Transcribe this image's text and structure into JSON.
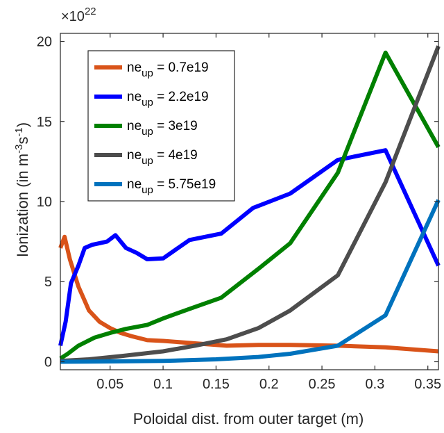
{
  "chart_data": {
    "type": "line",
    "title": "",
    "xlabel": "Poloidal dist. from outer target (m)",
    "ylabel": {
      "text": "Ionization (in m",
      "sup1": "-3",
      "mid": "s",
      "sup2": "-1",
      "end": ")"
    },
    "y_multiplier": {
      "base": "×10",
      "exponent": "22"
    },
    "xlim": [
      0.003,
      0.36
    ],
    "ylim": [
      -0.5,
      20.5
    ],
    "x_ticks": [
      0.05,
      0.1,
      0.15,
      0.2,
      0.25,
      0.3,
      0.35
    ],
    "x_tick_labels": [
      "0.05",
      "0.1",
      "0.15",
      "0.2",
      "0.25",
      "0.3",
      "0.35"
    ],
    "y_ticks": [
      0,
      5,
      10,
      15,
      20
    ],
    "y_tick_labels": [
      "0",
      "5",
      "10",
      "15",
      "20"
    ],
    "grid": false,
    "legend_position": "top-left",
    "series": [
      {
        "name": {
          "prefix": "ne",
          "sub": "up",
          "suffix": " = 0.7e19"
        },
        "color": "#D95319",
        "x": [
          0.003,
          0.007,
          0.012,
          0.02,
          0.03,
          0.04,
          0.05,
          0.06,
          0.07,
          0.085,
          0.1,
          0.13,
          0.16,
          0.19,
          0.22,
          0.265,
          0.31,
          0.36
        ],
        "y": [
          7.1,
          7.8,
          6.4,
          4.7,
          3.2,
          2.5,
          2.1,
          1.8,
          1.6,
          1.35,
          1.3,
          1.15,
          1.0,
          1.05,
          1.05,
          1.0,
          0.9,
          0.65
        ]
      },
      {
        "name": {
          "prefix": "ne",
          "sub": "up",
          "suffix": " = 2.2e19"
        },
        "color": "#0000FF",
        "x": [
          0.003,
          0.008,
          0.013,
          0.02,
          0.026,
          0.033,
          0.04,
          0.047,
          0.055,
          0.065,
          0.075,
          0.085,
          0.1,
          0.125,
          0.155,
          0.185,
          0.22,
          0.265,
          0.31,
          0.36
        ],
        "y": [
          1.0,
          2.5,
          4.9,
          6.0,
          7.1,
          7.3,
          7.4,
          7.5,
          7.9,
          7.1,
          6.8,
          6.4,
          6.45,
          7.6,
          8.0,
          9.6,
          10.5,
          12.6,
          13.2,
          6.0
        ]
      },
      {
        "name": {
          "prefix": "ne",
          "sub": "up",
          "suffix": " = 3e19"
        },
        "color": "#008000",
        "x": [
          0.003,
          0.01,
          0.02,
          0.035,
          0.05,
          0.065,
          0.085,
          0.1,
          0.125,
          0.155,
          0.19,
          0.22,
          0.265,
          0.31,
          0.36
        ],
        "y": [
          0.2,
          0.5,
          1.0,
          1.5,
          1.8,
          2.05,
          2.3,
          2.7,
          3.3,
          4.0,
          5.8,
          7.4,
          11.8,
          19.3,
          13.4
        ]
      },
      {
        "name": {
          "prefix": "ne",
          "sub": "up",
          "suffix": " = 4e19"
        },
        "color": "#4D4D4D",
        "x": [
          0.003,
          0.03,
          0.06,
          0.1,
          0.13,
          0.16,
          0.19,
          0.22,
          0.265,
          0.31,
          0.36
        ],
        "y": [
          0.05,
          0.15,
          0.35,
          0.65,
          1.0,
          1.4,
          2.1,
          3.2,
          5.4,
          11.2,
          19.7
        ]
      },
      {
        "name": {
          "prefix": "ne",
          "sub": "up",
          "suffix": " = 5.75e19"
        },
        "color": "#0072BD",
        "x": [
          0.003,
          0.05,
          0.1,
          0.15,
          0.19,
          0.22,
          0.265,
          0.31,
          0.36
        ],
        "y": [
          0.0,
          0.02,
          0.05,
          0.15,
          0.3,
          0.5,
          1.0,
          2.9,
          10.1
        ]
      }
    ]
  }
}
